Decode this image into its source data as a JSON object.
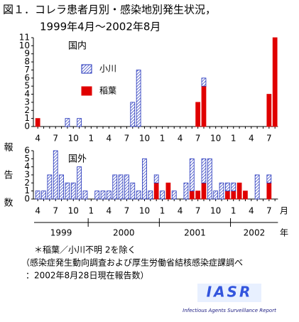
{
  "title": [
    "図１．コレラ患者月別・感染地別発生状況，",
    "1999年4月～2002年8月"
  ],
  "y_label": "報告数",
  "year_axis": {
    "labels": [
      "1999",
      "2000",
      "2001",
      "2002"
    ],
    "unit": "年"
  },
  "notes": [
    "＊稲葉／小川不明 2を除く",
    "（感染症発生動向調査および厚生労働省結核感染症課調べ",
    "：2002年8月28日現在報告数）"
  ],
  "logo": {
    "text": "IASR",
    "subtitle": "Infectious Agents Surveillance Report"
  },
  "chart_data": [
    {
      "type": "bar",
      "stacked": true,
      "title": "国内",
      "categories": [
        "4",
        null,
        null,
        "7",
        null,
        null,
        "10",
        null,
        null,
        "1",
        null,
        null,
        "4",
        null,
        null,
        "7",
        null,
        null,
        "10",
        null,
        null,
        "1",
        null,
        null,
        "4",
        null,
        null,
        "7",
        null,
        null,
        "10",
        null,
        null,
        "1",
        null,
        null,
        "4",
        null,
        null,
        "7",
        null
      ],
      "series": [
        {
          "name": "小川",
          "color": "#2233bb",
          "pattern": "hatch",
          "values": [
            0,
            0,
            0,
            0,
            0,
            1,
            0,
            1,
            0,
            0,
            0,
            0,
            0,
            0,
            0,
            0,
            3,
            7,
            0,
            0,
            0,
            0,
            0,
            0,
            0,
            0,
            0,
            0,
            1,
            0,
            0,
            0,
            0,
            0,
            0,
            0,
            0,
            0,
            0,
            0,
            0
          ]
        },
        {
          "name": "稲葉",
          "color": "#e00000",
          "pattern": "solid",
          "values": [
            1,
            0,
            0,
            0,
            0,
            0,
            0,
            0,
            0,
            0,
            0,
            0,
            0,
            0,
            0,
            0,
            0,
            0,
            0,
            0,
            0,
            0,
            0,
            0,
            0,
            0,
            0,
            3,
            5,
            0,
            0,
            0,
            0,
            0,
            0,
            0,
            0,
            0,
            0,
            4,
            11
          ]
        }
      ],
      "ylim": [
        0,
        11
      ],
      "yticks": [
        0,
        1,
        2,
        3,
        4,
        5,
        6,
        7,
        8,
        9,
        10,
        11
      ]
    },
    {
      "type": "bar",
      "stacked": true,
      "title": "国外",
      "x_label": "月",
      "categories": [
        "4",
        null,
        null,
        "7",
        null,
        null,
        "10",
        null,
        null,
        "1",
        null,
        null,
        "4",
        null,
        null,
        "7",
        null,
        null,
        "10",
        null,
        null,
        "1",
        null,
        null,
        "4",
        null,
        null,
        "7",
        null,
        null,
        "10",
        null,
        null,
        "1",
        null,
        null,
        "4",
        null,
        null,
        "7",
        null
      ],
      "series": [
        {
          "color": "#2233bb",
          "pattern": "hatch",
          "values": [
            1,
            1,
            3,
            6,
            3,
            2,
            2,
            4,
            1,
            0,
            1,
            1,
            1,
            3,
            3,
            3,
            2,
            1,
            5,
            1,
            1,
            1,
            0,
            1,
            0,
            2,
            4,
            0,
            3,
            5,
            1,
            2,
            1,
            1,
            0,
            0,
            0,
            3,
            0,
            1,
            0
          ]
        },
        {
          "color": "#e00000",
          "pattern": "solid",
          "values": [
            0,
            0,
            0,
            0,
            0,
            0,
            0,
            0,
            0,
            0,
            0,
            0,
            0,
            0,
            0,
            0,
            0,
            0,
            0,
            0,
            2,
            0,
            2,
            0,
            0,
            0,
            1,
            1,
            2,
            0,
            0,
            0,
            1,
            1,
            2,
            1,
            0,
            0,
            0,
            2,
            0
          ]
        }
      ],
      "ylim": [
        0,
        6
      ],
      "yticks": [
        0,
        1,
        2,
        3,
        4,
        5,
        6
      ]
    }
  ]
}
